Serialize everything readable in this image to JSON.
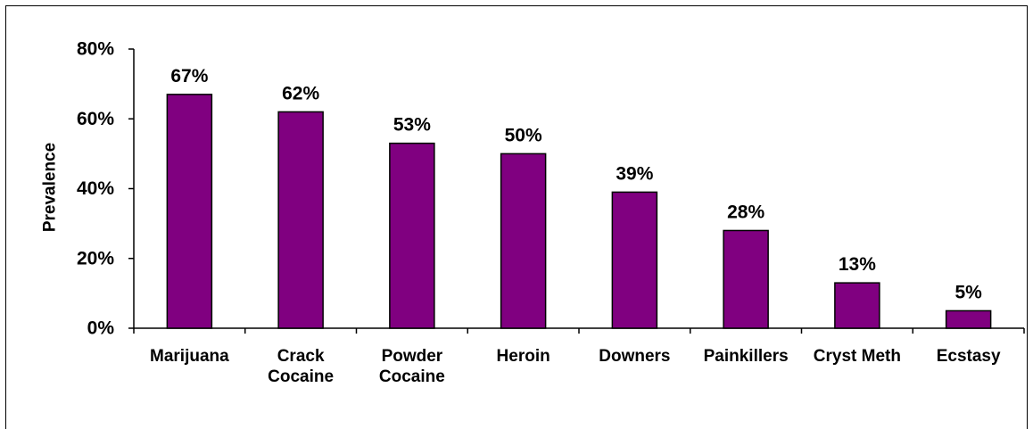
{
  "chart_data": {
    "type": "bar",
    "title": "",
    "xlabel": "",
    "ylabel": "Prevalence",
    "categories": [
      [
        "Marijuana"
      ],
      [
        "Crack",
        "Cocaine"
      ],
      [
        "Powder",
        "Cocaine"
      ],
      [
        "Heroin"
      ],
      [
        "Downers"
      ],
      [
        "Painkillers"
      ],
      [
        "Cryst Meth"
      ],
      [
        "Ecstasy"
      ]
    ],
    "values": [
      67,
      62,
      53,
      50,
      39,
      28,
      13,
      5
    ],
    "data_labels": [
      "67%",
      "62%",
      "53%",
      "50%",
      "39%",
      "28%",
      "13%",
      "5%"
    ],
    "ylim": [
      0,
      80
    ],
    "yticks": [
      0,
      20,
      40,
      60,
      80
    ],
    "ytick_labels": [
      "0%",
      "20%",
      "40%",
      "60%",
      "80%"
    ],
    "grid": false,
    "legend": "none",
    "bar_color": "#800080",
    "bar_edge_color": "#000000"
  }
}
